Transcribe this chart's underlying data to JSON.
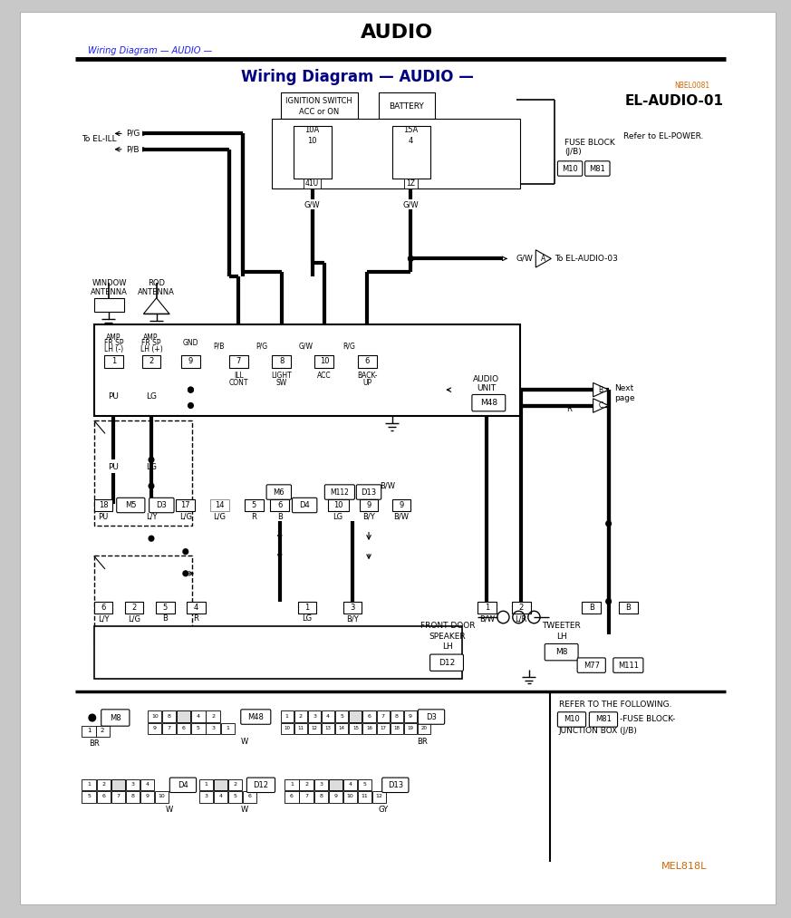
{
  "title": "AUDIO",
  "subtitle": "Wiring Diagram — AUDIO —",
  "breadcrumb": "Wiring Diagram — AUDIO —",
  "diagram_id": "EL-AUDIO-01",
  "diagram_code": "NBEL0081",
  "footer_code": "MEL818L",
  "bg_color": "#c8c8c8",
  "page_bg": "#ffffff",
  "breadcrumb_color": "#1a1aff",
  "subtitle_color": "#000080",
  "code_color": "#cc6600",
  "line_color": "#000000"
}
